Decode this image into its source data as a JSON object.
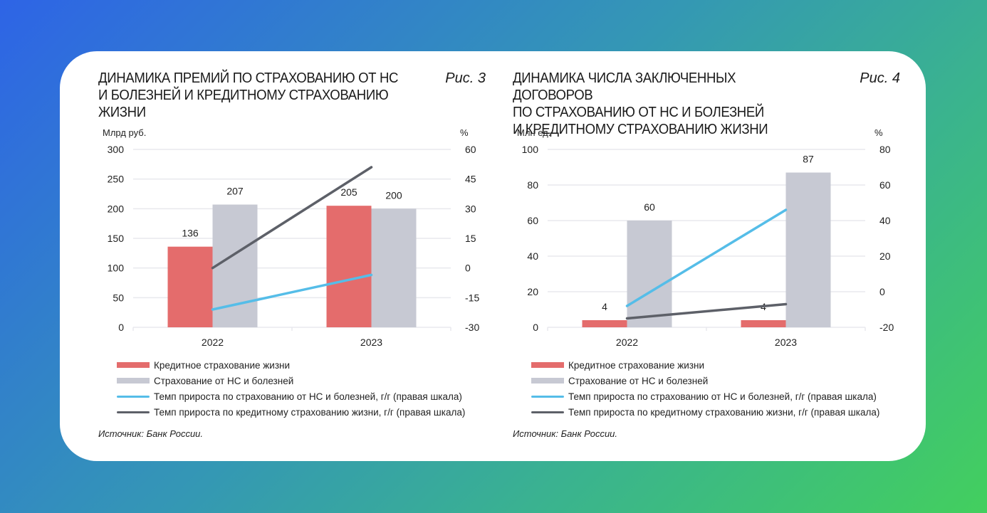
{
  "colors": {
    "credit_bar": "#e46c6c",
    "accident_bar": "#c7c9d3",
    "accident_growth_line": "#55bde8",
    "credit_growth_line": "#5d6068",
    "grid": "#e8e9ed"
  },
  "chart_data": [
    {
      "type": "bar",
      "title": "ДИНАМИКА ПРЕМИЙ ПО СТРАХОВАНИЮ ОТ НС И БОЛЕЗНЕЙ И КРЕДИТНОМУ СТРАХОВАНИЮ ЖИЗНИ",
      "figure_label": "Рис. 3",
      "ylabel": "Млрд руб.",
      "y2label": "%",
      "categories": [
        "2022",
        "2023"
      ],
      "ylim": [
        0,
        300
      ],
      "yticks": [
        0,
        50,
        100,
        150,
        200,
        250,
        300
      ],
      "y2lim": [
        -30,
        60
      ],
      "y2ticks": [
        -30,
        -15,
        0,
        15,
        30,
        45,
        60
      ],
      "grid": true,
      "series": [
        {
          "name": "Кредитное страхование жизни",
          "kind": "bar",
          "axis": "left",
          "values": [
            136,
            205
          ],
          "labels": [
            "136",
            "205"
          ]
        },
        {
          "name": "Страхование от НС и болезней",
          "kind": "bar",
          "axis": "left",
          "values": [
            207,
            200
          ],
          "labels": [
            "207",
            "200"
          ]
        },
        {
          "name": "Темп прироста по страхованию от НС и болезней, г/г (правая шкала)",
          "kind": "line",
          "axis": "right",
          "values": [
            -21,
            -3.5
          ]
        },
        {
          "name": "Темп прироста по кредитному страхованию жизни, г/г (правая шкала)",
          "kind": "line",
          "axis": "right",
          "values": [
            0,
            51
          ]
        }
      ],
      "legend_position": "bottom",
      "source": "Источник: Банк России."
    },
    {
      "type": "bar",
      "title": "ДИНАМИКА ЧИСЛА ЗАКЛЮЧЕННЫХ ДОГОВОРОВ ПО СТРАХОВАНИЮ ОТ НС И БОЛЕЗНЕЙ И КРЕДИТНОМУ СТРАХОВАНИЮ ЖИЗНИ",
      "figure_label": "Рис. 4",
      "ylabel": "Млн ед.",
      "y2label": "%",
      "categories": [
        "2022",
        "2023"
      ],
      "ylim": [
        0,
        100
      ],
      "yticks": [
        0,
        20,
        40,
        60,
        80,
        100
      ],
      "y2lim": [
        -20,
        80
      ],
      "y2ticks": [
        -20,
        0,
        20,
        40,
        60,
        80
      ],
      "grid": true,
      "series": [
        {
          "name": "Кредитное страхование жизни",
          "kind": "bar",
          "axis": "left",
          "values": [
            4,
            4
          ],
          "labels": [
            "4",
            "4"
          ]
        },
        {
          "name": "Страхование от НС и болезней",
          "kind": "bar",
          "axis": "left",
          "values": [
            60,
            87
          ],
          "labels": [
            "60",
            "87"
          ]
        },
        {
          "name": "Темп прироста по страхованию от НС и болезней, г/г (правая шкала)",
          "kind": "line",
          "axis": "right",
          "values": [
            -8,
            46
          ]
        },
        {
          "name": "Темп прироста по кредитному страхованию жизни, г/г (правая шкала)",
          "kind": "line",
          "axis": "right",
          "values": [
            -15,
            -7
          ]
        }
      ],
      "legend_position": "bottom",
      "source": "Источник: Банк России."
    }
  ],
  "panels": [
    {
      "title_lines": [
        "ДИНАМИКА ПРЕМИЙ ПО СТРАХОВАНИЮ ОТ НС",
        "И БОЛЕЗНЕЙ И КРЕДИТНОМУ СТРАХОВАНИЮ",
        "ЖИЗНИ"
      ],
      "figure_label": "Рис. 3",
      "units_left": "Млрд руб.",
      "units_right": "%",
      "source": "Источник: Банк России."
    },
    {
      "title_lines": [
        "ДИНАМИКА ЧИСЛА ЗАКЛЮЧЕННЫХ ДОГОВОРОВ",
        "ПО СТРАХОВАНИЮ ОТ НС И БОЛЕЗНЕЙ",
        "И КРЕДИТНОМУ СТРАХОВАНИЮ ЖИЗНИ"
      ],
      "figure_label": "Рис. 4",
      "units_left": "Млн ед.",
      "units_right": "%",
      "source": "Источник: Банк России."
    }
  ]
}
